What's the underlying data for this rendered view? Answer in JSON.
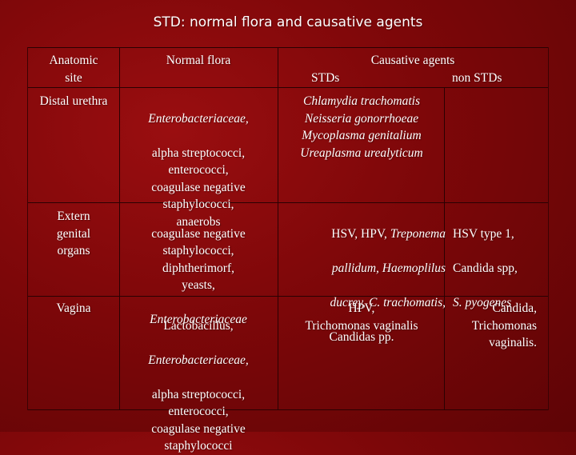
{
  "title": "STD: normal flora and causative agents",
  "headers": {
    "site": "Anatomic\nsite",
    "flora": "Normal flora",
    "causative": "Causative agents",
    "stds": "STDs",
    "non_stds": "non STDs"
  },
  "rows": [
    {
      "site": "Distal urethra",
      "flora_italic": "Enterobacteriaceae,",
      "flora": "alpha streptococci,\nenterococci,\ncoagulase negative\nstaphylococci,\nanaerobs",
      "stds": "Chlamydia trachomatis\nNeisseria gonorrhoeae\nMycoplasma genitalium\nUreaplasma urealyticum",
      "non_stds": ""
    },
    {
      "site": "Extern\ngenital\norgans",
      "flora": "coagulase negative\nstaphylococci,\ndiphtherimorf,\nyeasts,",
      "flora_italic": "Enterobacteriaceae",
      "stds_l1a": "HSV,  HPV, ",
      "stds_l1b": "Treponema",
      "stds_l2": "pallidum, Haemoplilus",
      "stds_l3": "ducrey, C. trachomatis,",
      "stds_l4": "Candidas pp.",
      "non_l1": "HSV type 1,",
      "non_l2": "Candida spp,",
      "non_l3": "S. pyogenes"
    },
    {
      "site": "Vagina",
      "flora_l1": "Lactobacillus,",
      "flora_italic": "Enterobacteriaceae,",
      "flora": "alpha streptococci,\nenterococci,\ncoagulase negative\nstaphylococci",
      "stds": "HPV,\nTrichomonas vaginalis",
      "non_stds": "Candida,\nTrichomonas\nvaginalis."
    }
  ]
}
